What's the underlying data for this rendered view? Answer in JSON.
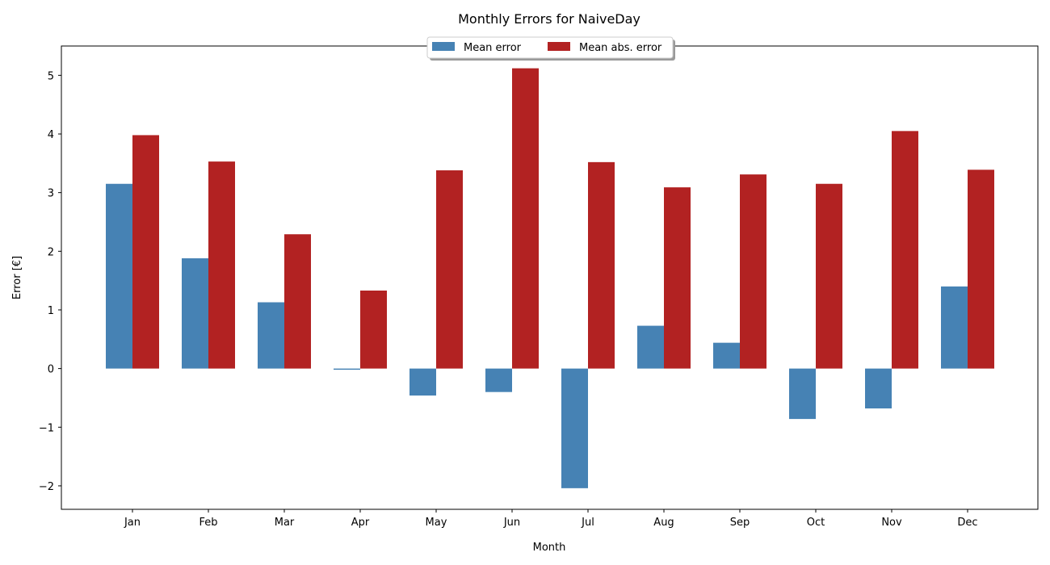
{
  "chart_data": {
    "type": "bar",
    "title": "Monthly Errors for NaiveDay",
    "xlabel": "Month",
    "ylabel": "Error [€]",
    "categories": [
      "Jan",
      "Feb",
      "Mar",
      "Apr",
      "May",
      "Jun",
      "Jul",
      "Aug",
      "Sep",
      "Oct",
      "Nov",
      "Dec"
    ],
    "series": [
      {
        "name": "Mean error",
        "color": "#4682b4",
        "values": [
          3.15,
          1.88,
          1.13,
          -0.02,
          -0.46,
          -0.4,
          -2.04,
          0.73,
          0.44,
          -0.86,
          -0.68,
          1.4
        ]
      },
      {
        "name": "Mean abs. error",
        "color": "#b22222",
        "values": [
          3.98,
          3.53,
          2.29,
          1.33,
          3.38,
          5.12,
          3.52,
          3.09,
          3.31,
          3.15,
          4.05,
          3.39
        ]
      }
    ],
    "ylim": [
      -2.4,
      5.5
    ],
    "yticks": [
      -2,
      -1,
      0,
      1,
      2,
      3,
      4,
      5
    ],
    "ytick_labels": [
      "−2",
      "−1",
      "0",
      "1",
      "2",
      "3",
      "4",
      "5"
    ],
    "grid": false,
    "legend_position": "top-center"
  }
}
